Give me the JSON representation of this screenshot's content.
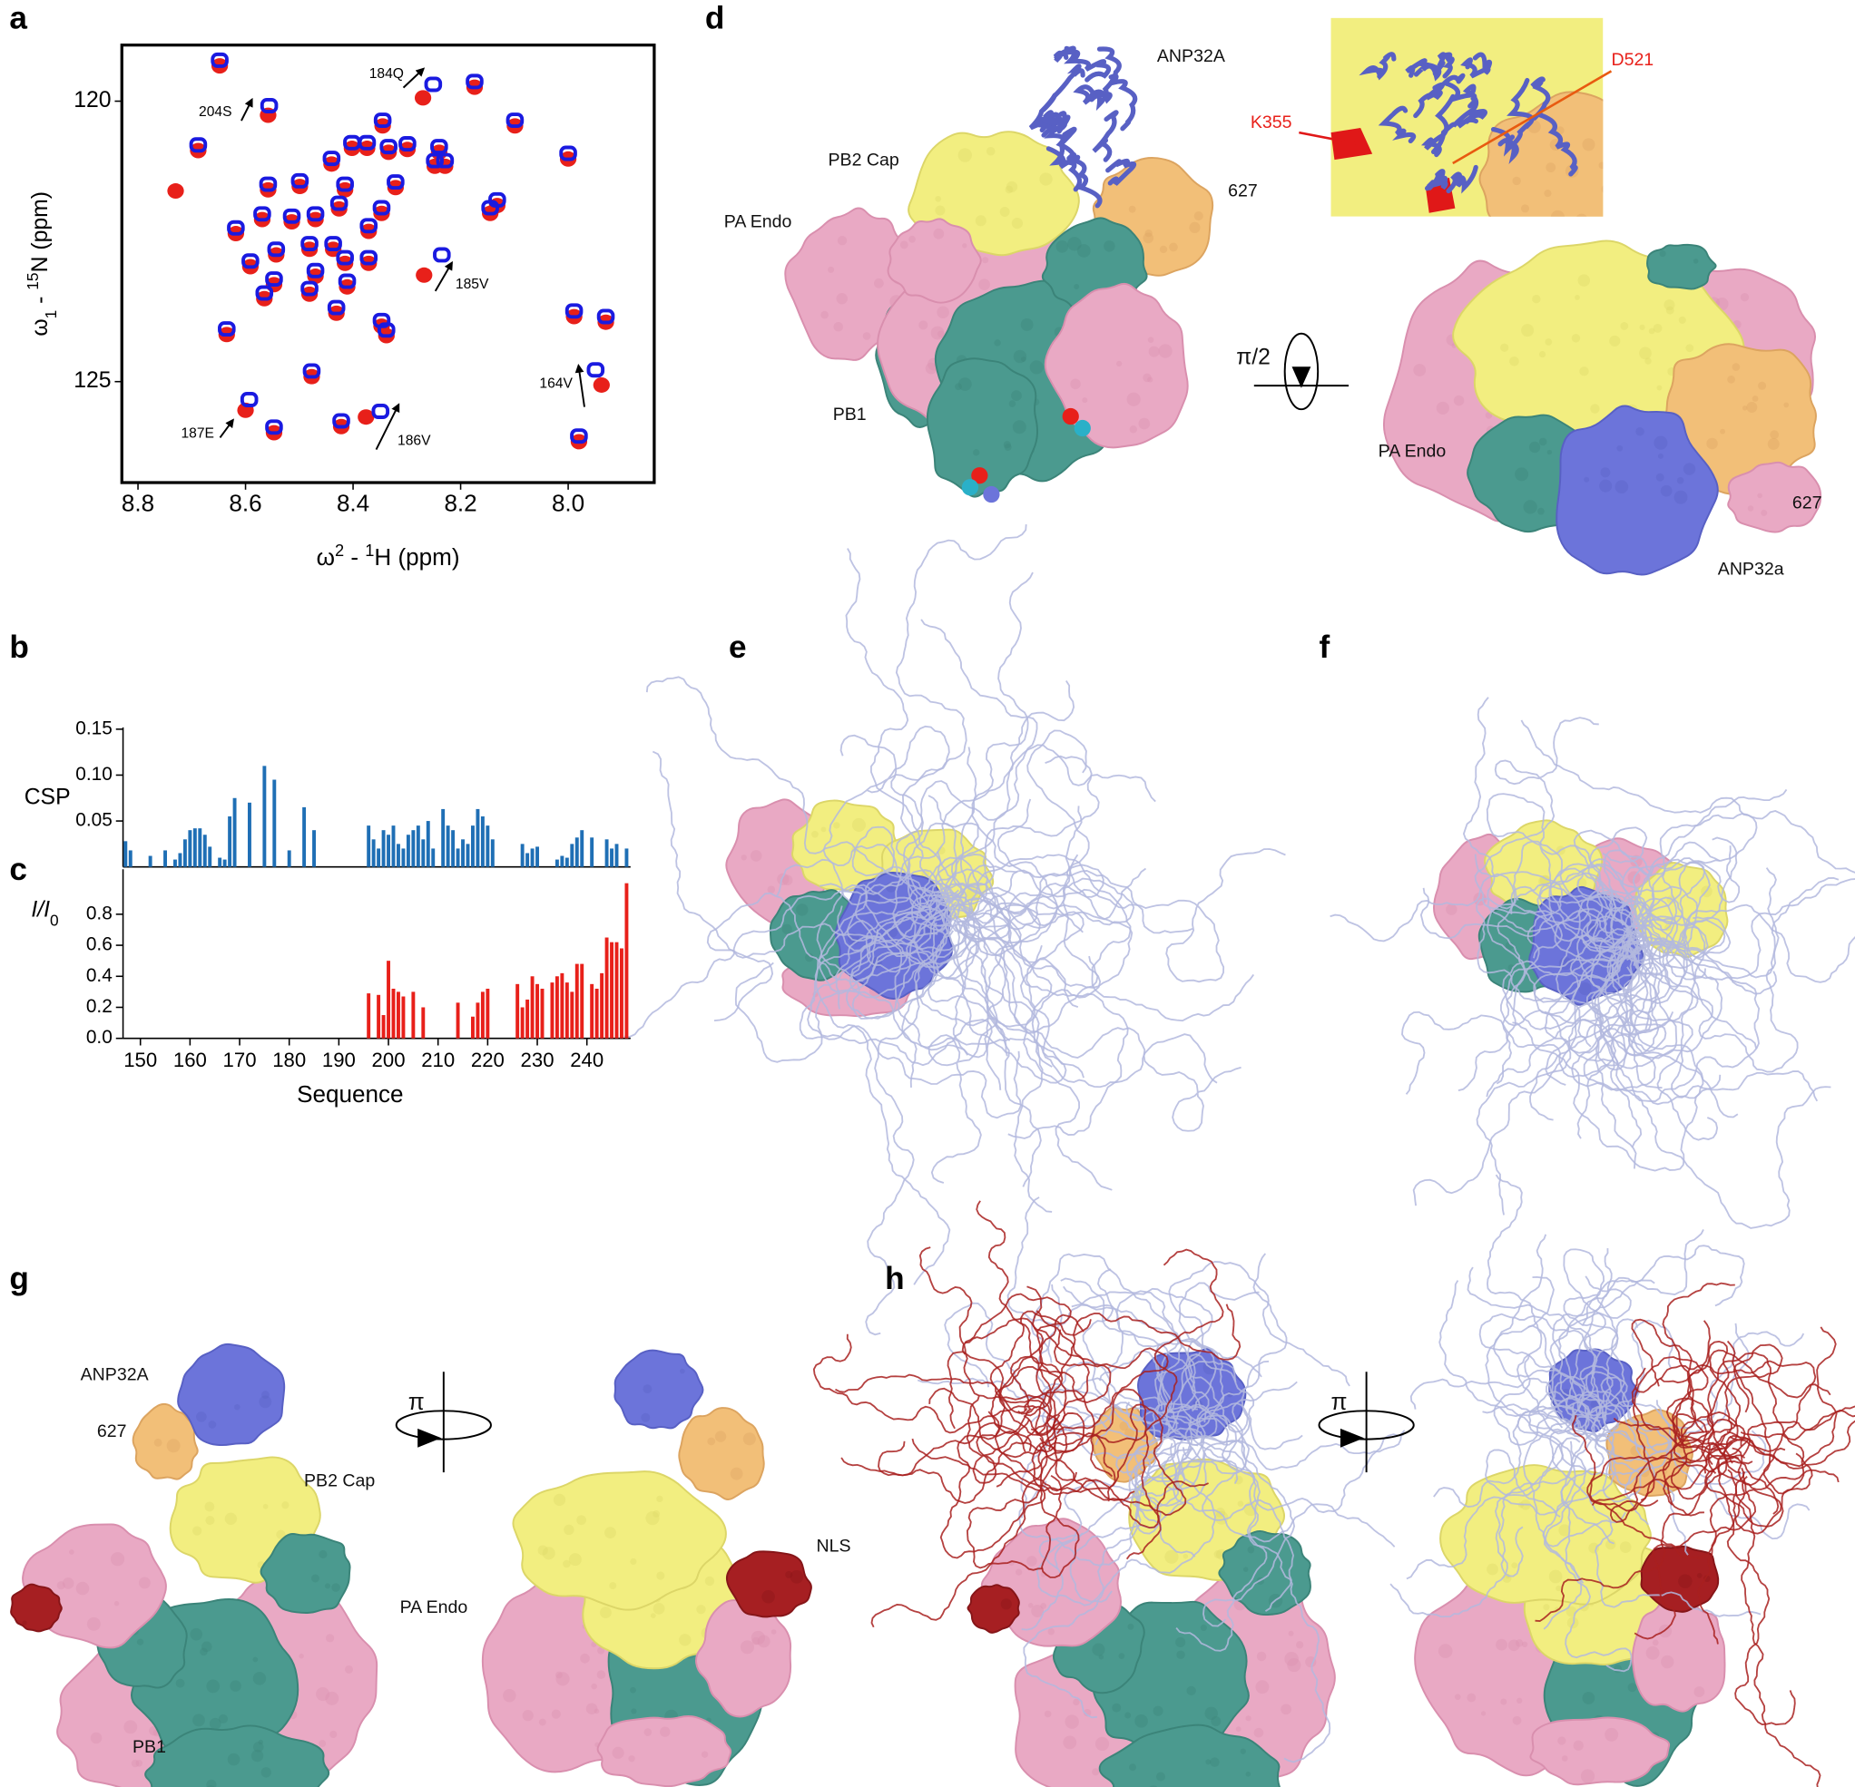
{
  "chart_data": [
    {
      "type": "scatter",
      "xlabel": [
        "ω",
        "2",
        " - ",
        "1",
        "H  (ppm)"
      ],
      "ylabel": [
        "ω",
        "1",
        " - ",
        "15",
        "N  (ppm)"
      ],
      "xlim": [
        8.83,
        7.84
      ],
      "xticks": [
        8.8,
        8.6,
        8.4,
        8.2,
        {
          "value": 8.0,
          "label": "8.0"
        }
      ],
      "ylim": [
        126.8,
        119.0
      ],
      "yticks": [
        120,
        125
      ],
      "annotations": [
        "204S",
        "184Q",
        "185V",
        "164V",
        "187E",
        "186V"
      ],
      "series": [
        {
          "color": "#e8201a",
          "marker": "filled",
          "x": [
            8.648,
            8.558,
            8.688,
            8.27,
            8.174,
            8.099,
            8.0,
            8.345,
            8.402,
            8.374,
            8.334,
            8.299,
            8.24,
            8.229,
            8.248,
            8.44,
            8.499,
            8.558,
            8.415,
            8.321,
            8.426,
            8.47,
            8.514,
            8.569,
            8.618,
            8.145,
            8.132,
            8.347,
            8.371,
            8.437,
            8.481,
            8.543,
            8.591,
            8.547,
            8.47,
            8.415,
            8.371,
            8.411,
            8.268,
            8.481,
            8.565,
            8.635,
            8.431,
            8.338,
            8.347,
            7.989,
            7.93,
            8.477,
            7.938,
            8.422,
            8.376,
            8.6,
            8.547,
            7.98,
            8.73
          ],
          "values": [
            119.35,
            120.23,
            120.86,
            119.92,
            119.73,
            120.42,
            121.01,
            120.42,
            120.82,
            120.82,
            120.89,
            120.84,
            120.89,
            121.14,
            121.14,
            121.1,
            121.5,
            121.56,
            121.56,
            121.52,
            121.9,
            122.09,
            122.13,
            122.09,
            122.34,
            121.98,
            121.84,
            121.98,
            122.3,
            122.62,
            122.62,
            122.72,
            122.93,
            123.25,
            123.1,
            122.87,
            122.87,
            123.29,
            123.08,
            123.42,
            123.5,
            124.14,
            123.76,
            124.16,
            123.99,
            123.82,
            123.92,
            124.89,
            125.04,
            125.78,
            125.61,
            125.49,
            125.89,
            126.05,
            121.58
          ]
        },
        {
          "color": "#1a1ae0",
          "marker": "open",
          "x": [
            8.648,
            8.556,
            8.688,
            8.251,
            8.174,
            8.099,
            8.0,
            8.345,
            8.402,
            8.374,
            8.334,
            8.299,
            8.24,
            8.229,
            8.248,
            8.44,
            8.499,
            8.558,
            8.415,
            8.321,
            8.426,
            8.47,
            8.514,
            8.569,
            8.618,
            8.145,
            8.132,
            8.347,
            8.371,
            8.437,
            8.481,
            8.543,
            8.591,
            8.547,
            8.47,
            8.415,
            8.371,
            8.411,
            8.235,
            8.481,
            8.565,
            8.635,
            8.431,
            8.338,
            8.347,
            7.989,
            7.93,
            8.477,
            7.949,
            8.422,
            8.349,
            8.593,
            8.547,
            7.98
          ],
          "values": [
            119.27,
            120.08,
            120.78,
            119.7,
            119.65,
            120.34,
            120.93,
            120.34,
            120.74,
            120.74,
            120.81,
            120.76,
            120.81,
            121.06,
            121.06,
            121.02,
            121.42,
            121.48,
            121.48,
            121.44,
            121.82,
            122.01,
            122.05,
            122.01,
            122.26,
            121.9,
            121.76,
            121.9,
            122.22,
            122.54,
            122.54,
            122.64,
            122.85,
            123.17,
            123.02,
            122.79,
            122.79,
            123.21,
            122.74,
            123.34,
            123.42,
            124.06,
            123.68,
            124.08,
            123.91,
            123.74,
            123.84,
            124.81,
            124.79,
            125.7,
            125.53,
            125.32,
            125.81,
            125.97
          ]
        }
      ]
    },
    {
      "type": "bar",
      "ylabel": "CSP",
      "color": "#1f6fb5",
      "xlim": [
        146.5,
        248.8
      ],
      "ylim": [
        0,
        0.152
      ],
      "yticks": [
        0.05,
        {
          "value": 0.1,
          "label": "0.10"
        },
        0.15
      ],
      "x": [
        147,
        148,
        152,
        155,
        157,
        158,
        159,
        160,
        161,
        162,
        163,
        164,
        166,
        167,
        168,
        169,
        172,
        175,
        177,
        180,
        183,
        185,
        196,
        197,
        198,
        199,
        200,
        201,
        202,
        203,
        204,
        205,
        206,
        207,
        208,
        209,
        211,
        212,
        213,
        214,
        215,
        216,
        217,
        218,
        219,
        220,
        221,
        227,
        228,
        229,
        230,
        234,
        235,
        236,
        237,
        238,
        239,
        241,
        244,
        245,
        246,
        248
      ],
      "values": [
        0.028,
        0.018,
        0.012,
        0.018,
        0.008,
        0.015,
        0.03,
        0.04,
        0.042,
        0.042,
        0.035,
        0.022,
        0.01,
        0.008,
        0.055,
        0.075,
        0.07,
        0.11,
        0.095,
        0.018,
        0.065,
        0.04,
        0.045,
        0.03,
        0.02,
        0.04,
        0.035,
        0.045,
        0.025,
        0.02,
        0.035,
        0.04,
        0.045,
        0.03,
        0.05,
        0.02,
        0.063,
        0.045,
        0.04,
        0.02,
        0.03,
        0.025,
        0.045,
        0.063,
        0.055,
        0.045,
        0.03,
        0.025,
        0.015,
        0.02,
        0.022,
        0.008,
        0.012,
        0.01,
        0.025,
        0.032,
        0.04,
        0.032,
        0.03,
        0.02,
        0.025,
        0.02
      ]
    },
    {
      "type": "bar",
      "ylabel": [
        "I/I",
        "0"
      ],
      "xlabel": "Sequence",
      "color": "#e8201a",
      "xlim": [
        146.5,
        248.8
      ],
      "ylim": [
        0,
        1.09
      ],
      "yticks": [
        {
          "value": 0,
          "label": "0.0"
        },
        0.2,
        0.4,
        0.6,
        0.8
      ],
      "xticks": [
        150,
        160,
        170,
        180,
        190,
        200,
        210,
        220,
        230,
        240
      ],
      "x": [
        196,
        198,
        199,
        200,
        201,
        202,
        203,
        205,
        207,
        214,
        217,
        218,
        219,
        220,
        226,
        227,
        228,
        229,
        230,
        231,
        233,
        234,
        235,
        236,
        237,
        238,
        239,
        241,
        242,
        243,
        244,
        245,
        246,
        247,
        248
      ],
      "values": [
        0.29,
        0.28,
        0.15,
        0.5,
        0.32,
        0.3,
        0.27,
        0.3,
        0.2,
        0.23,
        0.14,
        0.23,
        0.3,
        0.32,
        0.35,
        0.2,
        0.25,
        0.4,
        0.35,
        0.32,
        0.36,
        0.4,
        0.42,
        0.36,
        0.3,
        0.48,
        0.48,
        0.35,
        0.32,
        0.42,
        0.65,
        0.62,
        0.62,
        0.58,
        1.0
      ]
    }
  ],
  "figure": {
    "panel_labels": [
      "a",
      "b",
      "c",
      "d",
      "e",
      "f",
      "g",
      "h"
    ],
    "panel_d": {
      "labels": [
        "ANP32A",
        "PB2 Cap",
        "PA Endo",
        "627",
        "PB1",
        "K355",
        "D521",
        "π/2",
        "PA Endo",
        "627",
        "ANP32a"
      ]
    },
    "panel_g": {
      "labels": [
        "ANP32A",
        "627",
        "PB2 Cap",
        "PA Endo",
        "PB1",
        "π",
        "NLS"
      ]
    },
    "panel_h": {
      "labels": [
        "π"
      ]
    }
  }
}
